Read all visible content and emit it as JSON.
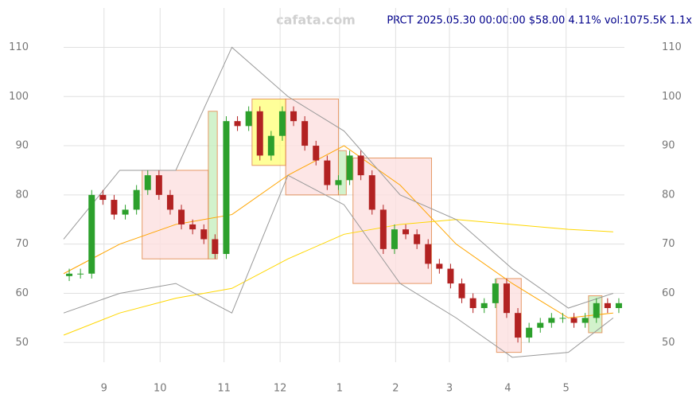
{
  "chart_data": {
    "type": "candlestick",
    "watermark": "cafata.com",
    "title": "PRCT 2025.05.30 00:00:00 $58.00 4.11% vol:1075.5K 1.1x",
    "xlim": [
      0,
      50
    ],
    "xticks": [
      {
        "value": 3.6,
        "label": "9"
      },
      {
        "value": 8.6,
        "label": "10"
      },
      {
        "value": 14.3,
        "label": "11"
      },
      {
        "value": 19.3,
        "label": "12"
      },
      {
        "value": 24.6,
        "label": "1"
      },
      {
        "value": 29.6,
        "label": "2"
      },
      {
        "value": 34.4,
        "label": "3"
      },
      {
        "value": 39.6,
        "label": "4"
      },
      {
        "value": 44.8,
        "label": "5"
      }
    ],
    "ylim": [
      46,
      118
    ],
    "yticks": [
      50,
      60,
      70,
      80,
      90,
      100,
      110
    ],
    "grid": true,
    "up_color": "#2ca02c",
    "down_color": "#b22222",
    "open": [
      63.5,
      64,
      64,
      80,
      79,
      76,
      77,
      81,
      84,
      80,
      77,
      74,
      73,
      71,
      68,
      95,
      94,
      97,
      88,
      92,
      97,
      95,
      90,
      87,
      82,
      83,
      88,
      84,
      77,
      69,
      73,
      72,
      70,
      66,
      65,
      62,
      59,
      57,
      58,
      62,
      56,
      51,
      53,
      54,
      55,
      55,
      54,
      55,
      58,
      57
    ],
    "high": [
      65,
      65,
      81,
      81,
      80,
      78,
      82,
      85,
      85,
      81,
      78,
      75,
      74,
      72,
      96,
      96,
      98,
      98,
      93,
      98,
      98,
      96,
      91,
      88,
      84,
      89,
      89,
      85,
      78,
      74,
      74,
      73,
      71,
      67,
      66,
      63,
      60,
      59,
      63,
      63,
      57,
      54,
      55,
      56,
      56,
      56,
      56,
      59,
      59,
      59
    ],
    "low": [
      62.5,
      63,
      63,
      78,
      75,
      75,
      76,
      80,
      79,
      76,
      73,
      72,
      70,
      67,
      67,
      93,
      93,
      87,
      87,
      91,
      94,
      89,
      86,
      81,
      81,
      82,
      83,
      76,
      68,
      68,
      71,
      69,
      65,
      64,
      61,
      58,
      56,
      56,
      57,
      55,
      50,
      50,
      52,
      53,
      54,
      53,
      53,
      54,
      56,
      56
    ],
    "close": [
      64,
      64,
      80,
      79,
      76,
      77,
      81,
      84,
      80,
      77,
      74,
      73,
      71,
      68,
      95,
      94,
      97,
      88,
      92,
      97,
      95,
      90,
      87,
      82,
      83,
      88,
      84,
      77,
      69,
      73,
      72,
      70,
      66,
      65,
      62,
      59,
      57,
      58,
      62,
      56,
      51,
      53,
      54,
      55,
      55,
      54,
      55,
      58,
      57,
      58
    ],
    "lines": [
      {
        "color": "#ffa500",
        "x": [
          0,
          5,
          10,
          15,
          20,
          25,
          30,
          35,
          40,
          45,
          49
        ],
        "values": [
          64,
          70,
          74,
          76,
          84,
          90,
          82,
          70,
          62,
          55,
          56
        ]
      },
      {
        "color": "#ffd700",
        "x": [
          0,
          5,
          10,
          15,
          20,
          25,
          30,
          35,
          40,
          45,
          49
        ],
        "values": [
          51.5,
          56,
          59,
          61,
          67,
          72,
          74,
          75,
          74,
          73,
          72.5
        ]
      },
      {
        "color": "#999999",
        "x": [
          0,
          5,
          10,
          15,
          20,
          25,
          30,
          35,
          40,
          45,
          49
        ],
        "values": [
          71,
          85,
          85,
          110,
          100,
          93,
          80,
          75,
          65,
          57,
          60
        ]
      },
      {
        "color": "#999999",
        "x": [
          0,
          5,
          10,
          15,
          20,
          25,
          30,
          35,
          40,
          45,
          49
        ],
        "values": [
          56,
          60,
          62,
          56,
          84,
          78,
          62,
          55,
          47,
          48,
          55
        ]
      }
    ],
    "zones": [
      {
        "x": [
          7,
          12.9
        ],
        "y": [
          67,
          85
        ],
        "color": "#fde0e0"
      },
      {
        "x": [
          12.9,
          13.7
        ],
        "y": [
          67,
          97
        ],
        "color": "#c8f0c0"
      },
      {
        "x": [
          16.8,
          19.8
        ],
        "y": [
          86,
          99.5
        ],
        "color": "#ffff80"
      },
      {
        "x": [
          19.8,
          24.5
        ],
        "y": [
          80,
          99.5
        ],
        "color": "#fde0e0"
      },
      {
        "x": [
          24.5,
          25.2
        ],
        "y": [
          80,
          89
        ],
        "color": "#c8f0c0"
      },
      {
        "x": [
          25.8,
          32.8
        ],
        "y": [
          62,
          87.5
        ],
        "color": "#fde0e0"
      },
      {
        "x": [
          38.6,
          40.8
        ],
        "y": [
          48,
          63
        ],
        "color": "#fde0e0"
      },
      {
        "x": [
          46.8,
          48
        ],
        "y": [
          52,
          59.5
        ],
        "color": "#c8f0c0"
      }
    ]
  }
}
